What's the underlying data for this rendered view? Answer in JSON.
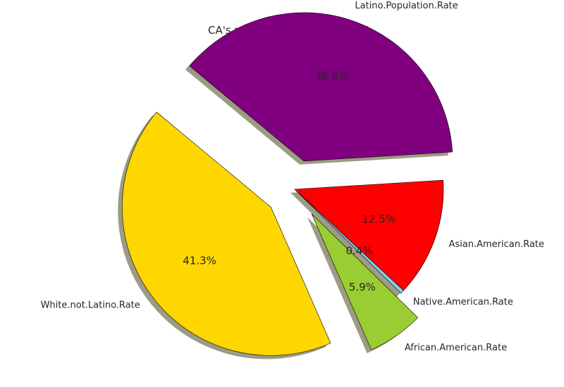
{
  "chart_data": {
    "type": "pie",
    "title": "CA's racial distribution pie plot",
    "slices": [
      {
        "label": "Latino.Population.Rate",
        "value": 36.8,
        "pct_label": "36.8%",
        "color": "#800080",
        "explode": true
      },
      {
        "label": "White.not.Latino.Rate",
        "value": 41.3,
        "pct_label": "41.3%",
        "color": "#FFD700",
        "explode": true
      },
      {
        "label": "African.American.Rate",
        "value": 5.9,
        "pct_label": "5.9%",
        "color": "#9ACD32",
        "explode": true
      },
      {
        "label": "Native.American.Rate",
        "value": 0.4,
        "pct_label": "0.4%",
        "color": "#87CEEB",
        "explode": false
      },
      {
        "label": "Asian.American.Rate",
        "value": 12.5,
        "pct_label": "12.5%",
        "color": "#FF0000",
        "explode": false
      }
    ],
    "start_angle_deg": 3.5,
    "direction": "counterclockwise",
    "shadow": true
  }
}
